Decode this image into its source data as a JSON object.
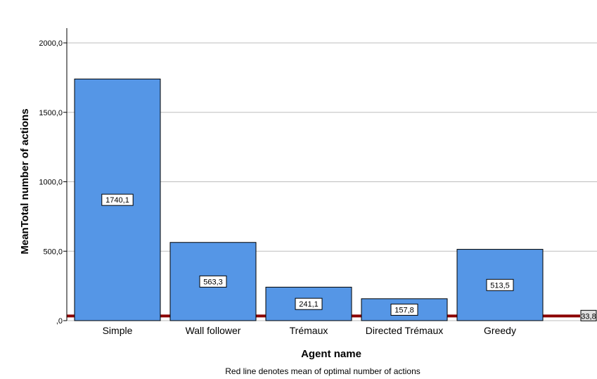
{
  "chart_data": {
    "type": "bar",
    "title": "",
    "xlabel": "Agent name",
    "ylabel": "MeanTotal number of actions",
    "footnote": "Red line denotes mean of optimal number of actions",
    "categories": [
      "Simple",
      "Wall follower",
      "Trémaux",
      "Directed Trémaux",
      "Greedy"
    ],
    "values": [
      1740.1,
      563.3,
      241.1,
      157.8,
      513.5
    ],
    "value_labels": [
      "1740,1",
      "563,3",
      "241,1",
      "157,8",
      "513,5"
    ],
    "ylim": [
      0,
      2000
    ],
    "yticks": [
      {
        "value": 0,
        "label": ",0"
      },
      {
        "value": 500,
        "label": "500,0"
      },
      {
        "value": 1000,
        "label": "1000,0"
      },
      {
        "value": 1500,
        "label": "1500,0"
      },
      {
        "value": 2000,
        "label": "2000,0"
      }
    ],
    "reference_line": {
      "value": 33.8,
      "label": "33,8",
      "color": "#8b0000"
    },
    "grid": true,
    "colors": {
      "bar": "#5596e6",
      "bar_border": "#000000",
      "grid": "#bdbdbd",
      "reference": "#8b0000"
    }
  }
}
